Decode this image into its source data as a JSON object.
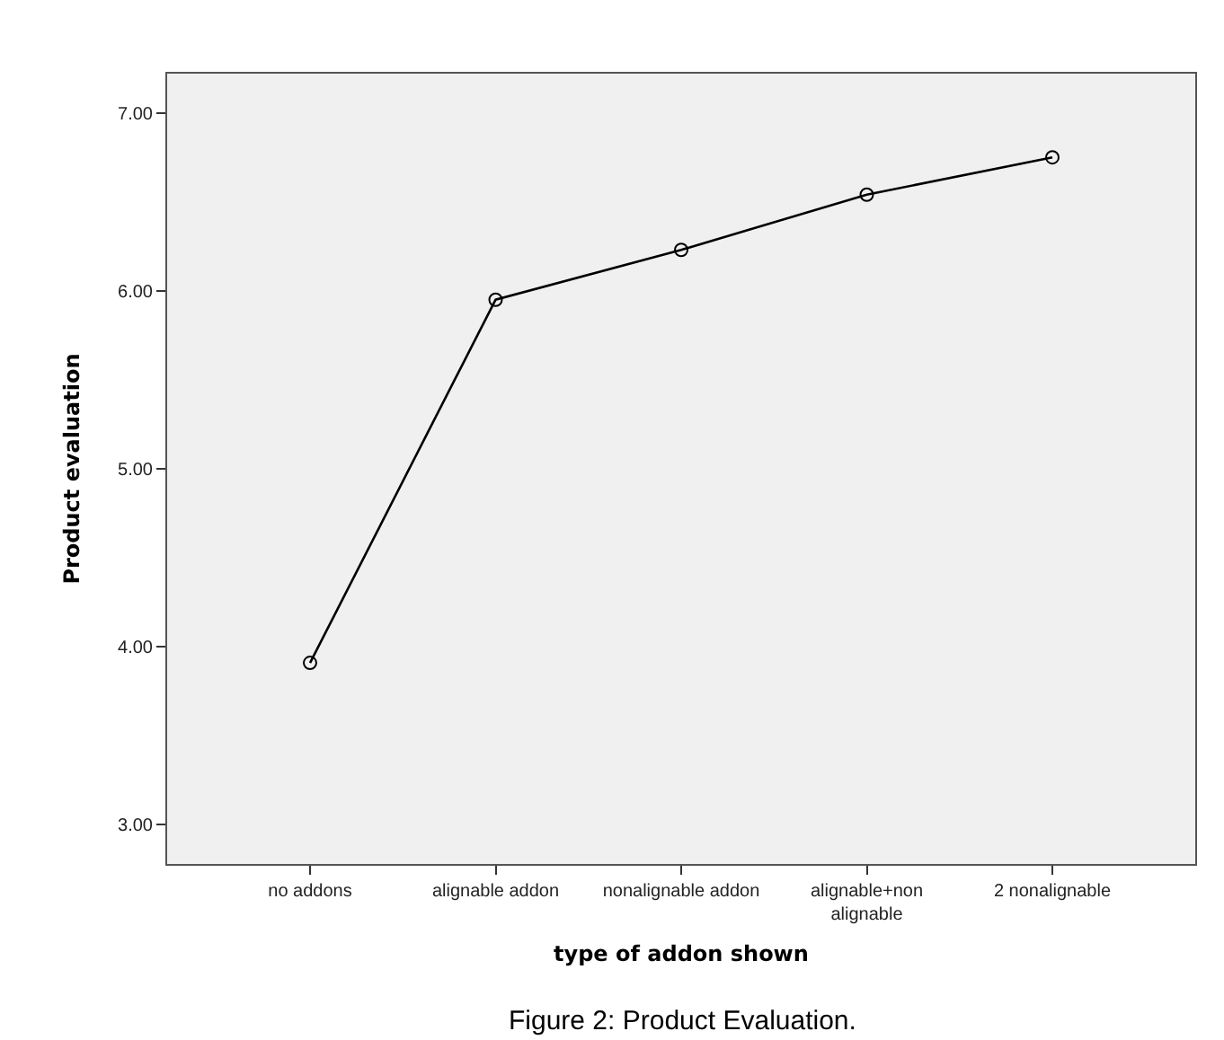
{
  "chart_data": {
    "type": "line",
    "title": "Figure 2: Product Evaluation.",
    "xlabel": "type of addon shown",
    "ylabel": "Product evaluation",
    "categories": [
      "no addons",
      "alignable addon",
      "nonalignable addon",
      "alignable+non alignable",
      "2 nonalignable"
    ],
    "series": [
      {
        "color": "#000000",
        "values": [
          3.91,
          5.95,
          6.23,
          6.54,
          6.75
        ]
      }
    ],
    "ylim": [
      2.78,
      7.22
    ],
    "yticks": [
      {
        "value": 3,
        "label": "3.00"
      },
      {
        "value": 4,
        "label": "4.00"
      },
      {
        "value": 5,
        "label": "5.00"
      },
      {
        "value": 6,
        "label": "6.00"
      },
      {
        "value": 7,
        "label": "7.00"
      }
    ],
    "grid": false,
    "marker": "circle",
    "line_style": "solid"
  }
}
